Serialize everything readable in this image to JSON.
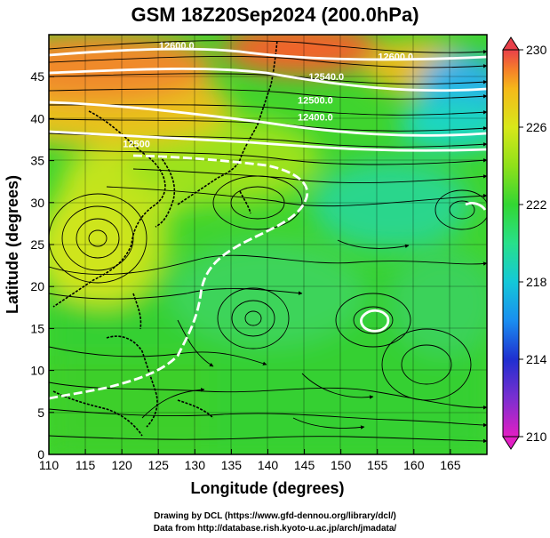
{
  "title": "GSM 18Z20Sep2024 (200.0hPa)",
  "x_axis": {
    "label": "Longitude (degrees)",
    "ticks": [
      110,
      115,
      120,
      125,
      130,
      135,
      140,
      145,
      150,
      155,
      160,
      165
    ],
    "range": [
      110,
      170
    ]
  },
  "y_axis": {
    "label": "Latitude  (degrees)",
    "ticks": [
      0,
      5,
      10,
      15,
      20,
      25,
      30,
      35,
      40,
      45
    ],
    "range": [
      0,
      50
    ]
  },
  "colorbar": {
    "ticks": [
      210,
      214,
      218,
      222,
      226,
      230
    ],
    "range": [
      210,
      230
    ],
    "colors": [
      "#e21fc4",
      "#7a2fd0",
      "#1f2fd0",
      "#1a8ef0",
      "#14c8d8",
      "#28e08a",
      "#33d633",
      "#8fe01a",
      "#d8e81a",
      "#f5b81a",
      "#f57e2a",
      "#e8404a"
    ]
  },
  "contour_labels": [
    {
      "text": "12600.0",
      "lon": 157.5,
      "lat": 47.0
    },
    {
      "text": "12540.0",
      "lon": 148.0,
      "lat": 44.6
    },
    {
      "text": "12500.0",
      "lon": 146.5,
      "lat": 41.8
    },
    {
      "text": "12400.0",
      "lon": 146.5,
      "lat": 39.8
    },
    {
      "text": "12600.0",
      "lon": 127.5,
      "lat": 48.3
    },
    {
      "text": "12500",
      "lon": 122.0,
      "lat": 36.6
    }
  ],
  "credits": {
    "line1": "Drawing by DCL (https://www.gfd-dennou.org/library/dcl/)",
    "line2": "Data from http://database.rish.kyoto-u.ac.jp/arch/jmadata/"
  }
}
